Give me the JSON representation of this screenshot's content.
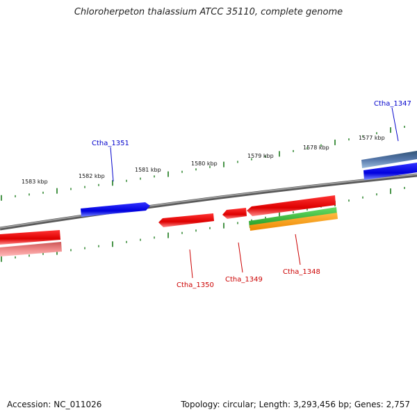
{
  "title": "Chloroherpeton thalassium ATCC 35110, complete genome",
  "footer": {
    "accession": "Accession: NC_011026",
    "summary": "Topology: circular; Length: 3,293,456 bp; Genes: 2,757"
  },
  "scale_labels": [
    "1583 kbp",
    "1582 kbp",
    "1581 kbp",
    "1580 kbp",
    "1579 kbp",
    "1578 kbp",
    "1577 kbp"
  ],
  "gene_labels": [
    {
      "name": "Ctha_1351",
      "color": "#0000cc"
    },
    {
      "name": "Ctha_1347",
      "color": "#0000cc"
    },
    {
      "name": "Ctha_1350",
      "color": "#cc0000"
    },
    {
      "name": "Ctha_1349",
      "color": "#cc0000"
    },
    {
      "name": "Ctha_1348",
      "color": "#cc0000"
    }
  ],
  "colors": {
    "forward_gene": "#0000ee",
    "reverse_gene": "#ee0000",
    "green_feature": "#33bb33",
    "orange_feature": "#ff9900",
    "ticks": "#1a7a1a",
    "backbone": "#777777"
  }
}
